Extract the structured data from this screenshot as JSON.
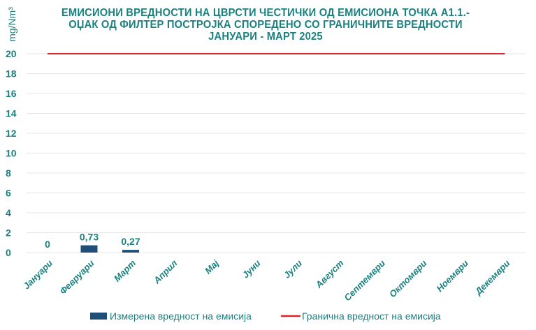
{
  "chart_data": {
    "type": "bar",
    "title": "ЕМИСИОНИ ВРЕДНОСТИ НА ЦВРСТИ ЧЕСТИЧКИ ОД ЕМИСИОНА ТОЧКА А1.1.-ОЏАК ОД ФИЛТЕР ПОСТРОЈКА СПОРЕДЕНО СО ГРАНИЧНИТЕ ВРЕДНОСТИ ЈАНУАРИ - МАРТ 2025",
    "ylabel": "mg/Nm³",
    "xlabel": "",
    "ylim": [
      0,
      20
    ],
    "yticks": [
      "0",
      "2",
      "4",
      "6",
      "8",
      "10",
      "12",
      "14",
      "16",
      "18",
      "20"
    ],
    "grid": true,
    "legend_position": "bottom",
    "categories": [
      "Јануари",
      "Февруари",
      "Март",
      "Април",
      "Мај",
      "Јуни",
      "Јули",
      "Август",
      "Септември",
      "Октомври",
      "Ноември",
      "Декември"
    ],
    "series": [
      {
        "name": "Измерена вредност на емисија",
        "type": "bar",
        "color": "#1f4e79",
        "values": [
          0,
          0.73,
          0.27,
          null,
          null,
          null,
          null,
          null,
          null,
          null,
          null,
          null
        ],
        "data_labels": [
          "0",
          "0,73",
          "0,27"
        ]
      },
      {
        "name": "Гранична вредност на емисија",
        "type": "line",
        "color": "#d9262b",
        "values": [
          20,
          20,
          20,
          20,
          20,
          20,
          20,
          20,
          20,
          20,
          20,
          20
        ]
      }
    ]
  }
}
